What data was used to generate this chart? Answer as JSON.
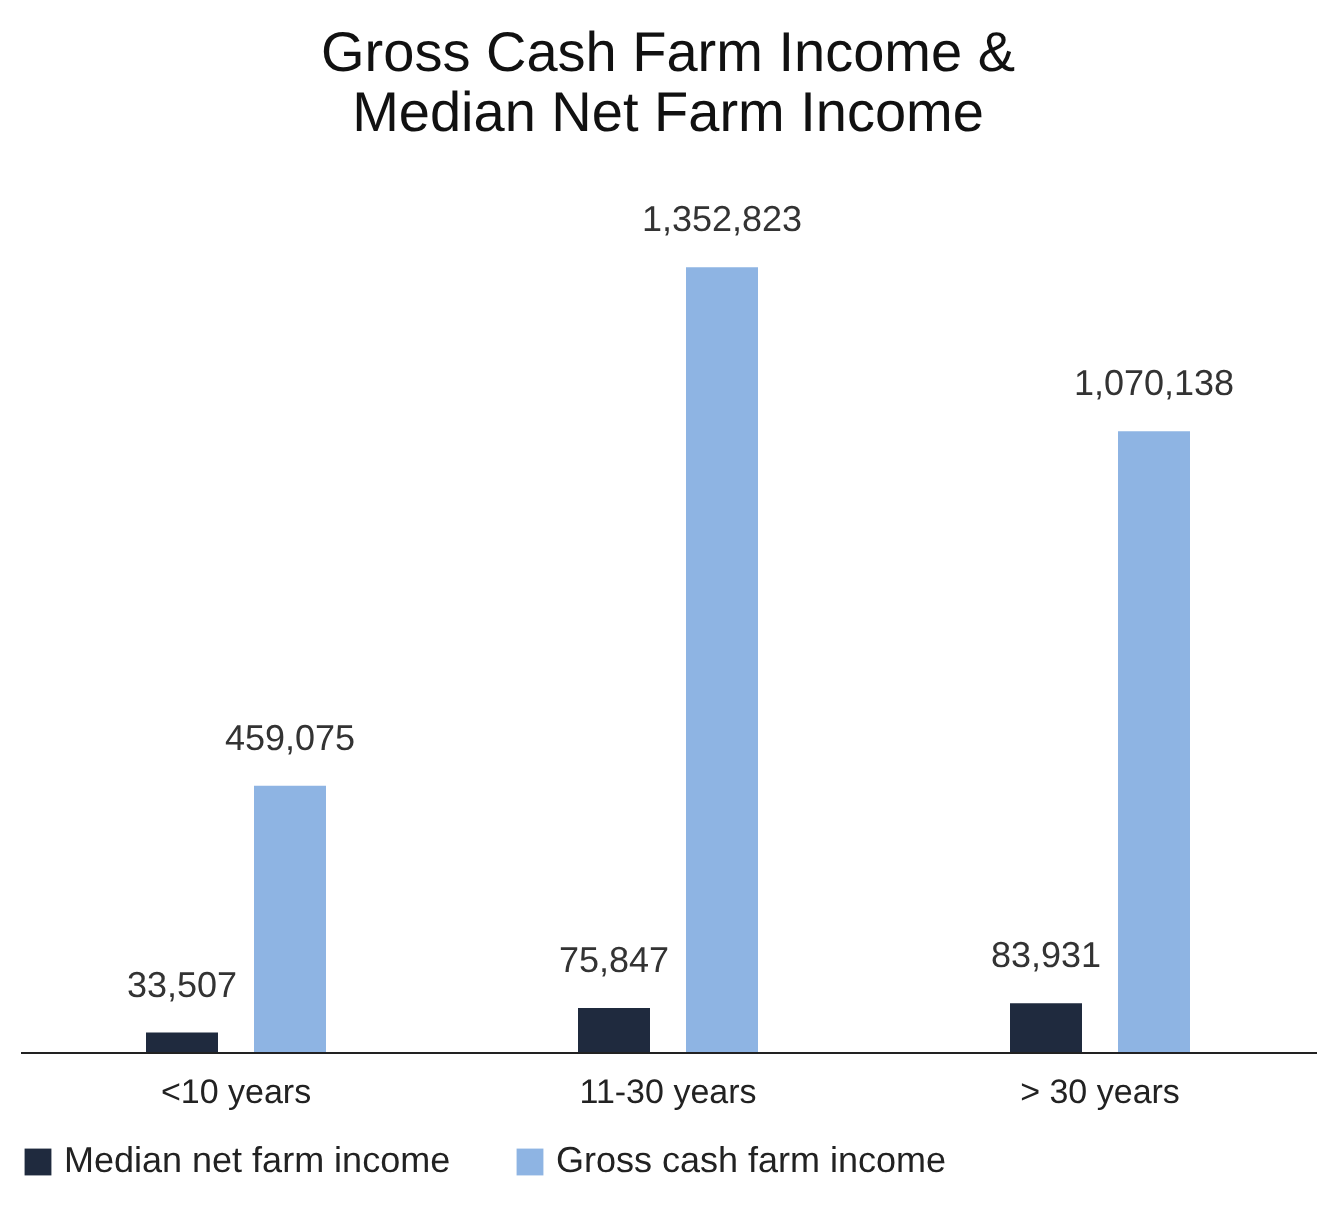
{
  "chart_data": {
    "type": "bar",
    "title": "Gross Cash Farm Income &\nMedian Net Farm Income",
    "categories": [
      "<10 years",
      "11-30 years",
      "> 30 years"
    ],
    "series": [
      {
        "name": "Median net farm income",
        "color": "#1f2a3e",
        "values": [
          33507,
          75847,
          83931
        ],
        "value_labels": [
          "33,507",
          "75,847",
          "83,931"
        ]
      },
      {
        "name": "Gross cash farm income",
        "color": "#8eb4e3",
        "values": [
          459075,
          1352823,
          1070138
        ],
        "value_labels": [
          "459,075",
          "1,352,823",
          "1,070,138"
        ]
      }
    ],
    "legend": "bottom",
    "grid": false
  }
}
